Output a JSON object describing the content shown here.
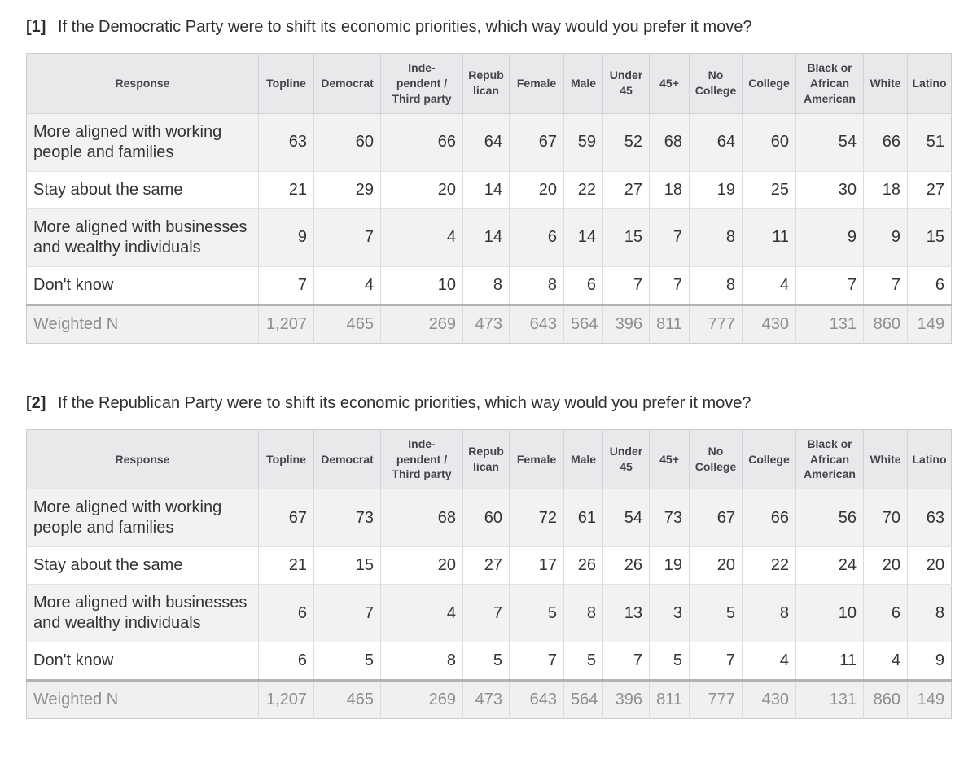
{
  "colors": {
    "header_bg": "#e9e9ec",
    "alt_row_bg": "#f2f2f2",
    "row_bg": "#ffffff",
    "footer_bg": "#f0f0f1",
    "inner_border": "#dcdcdc",
    "header_border": "#d4d4d8",
    "outer_border": "#cccccc",
    "footer_top_border": "#b3b3b3",
    "body_text": "#333333",
    "header_text": "#42444b",
    "footer_text": "#8e8e8e",
    "title_text": "#2e2e2e"
  },
  "columns": [
    {
      "key": "response",
      "label": "Response"
    },
    {
      "key": "topline",
      "label": "Topline"
    },
    {
      "key": "democrat",
      "label": "Democrat"
    },
    {
      "key": "independent-third-party",
      "label": "Inde-\npendent /\nThird party"
    },
    {
      "key": "republican",
      "label": "Repub\nlican"
    },
    {
      "key": "female",
      "label": "Female"
    },
    {
      "key": "male",
      "label": "Male"
    },
    {
      "key": "under-45",
      "label": "Under\n45"
    },
    {
      "key": "45-plus",
      "label": "45+"
    },
    {
      "key": "no-college",
      "label": "No\nCollege"
    },
    {
      "key": "college",
      "label": "College"
    },
    {
      "key": "black-african-american",
      "label": "Black or\nAfrican\nAmerican"
    },
    {
      "key": "white",
      "label": "White"
    },
    {
      "key": "latino",
      "label": "Latino"
    }
  ],
  "questions": [
    {
      "number": "[1]",
      "text": "If the Democratic Party were to shift its economic priorities, which way would you prefer it move?",
      "rows": [
        {
          "response": "More aligned with working people and families",
          "values": [
            "63",
            "60",
            "66",
            "64",
            "67",
            "59",
            "52",
            "68",
            "64",
            "60",
            "54",
            "66",
            "51"
          ]
        },
        {
          "response": "Stay about the same",
          "values": [
            "21",
            "29",
            "20",
            "14",
            "20",
            "22",
            "27",
            "18",
            "19",
            "25",
            "30",
            "18",
            "27"
          ]
        },
        {
          "response": "More aligned with businesses and wealthy individuals",
          "values": [
            "9",
            "7",
            "4",
            "14",
            "6",
            "14",
            "15",
            "7",
            "8",
            "11",
            "9",
            "9",
            "15"
          ]
        },
        {
          "response": "Don't know",
          "values": [
            "7",
            "4",
            "10",
            "8",
            "8",
            "6",
            "7",
            "7",
            "8",
            "4",
            "7",
            "7",
            "6"
          ]
        }
      ],
      "footer": {
        "label": "Weighted N",
        "values": [
          "1,207",
          "465",
          "269",
          "473",
          "643",
          "564",
          "396",
          "811",
          "777",
          "430",
          "131",
          "860",
          "149"
        ]
      }
    },
    {
      "number": "[2]",
      "text": "If the Republican Party were to shift its economic priorities, which way would you prefer it move?",
      "rows": [
        {
          "response": "More aligned with working people and families",
          "values": [
            "67",
            "73",
            "68",
            "60",
            "72",
            "61",
            "54",
            "73",
            "67",
            "66",
            "56",
            "70",
            "63"
          ]
        },
        {
          "response": "Stay about the same",
          "values": [
            "21",
            "15",
            "20",
            "27",
            "17",
            "26",
            "26",
            "19",
            "20",
            "22",
            "24",
            "20",
            "20"
          ]
        },
        {
          "response": "More aligned with businesses and wealthy individuals",
          "values": [
            "6",
            "7",
            "4",
            "7",
            "5",
            "8",
            "13",
            "3",
            "5",
            "8",
            "10",
            "6",
            "8"
          ]
        },
        {
          "response": "Don't know",
          "values": [
            "6",
            "5",
            "8",
            "5",
            "7",
            "5",
            "7",
            "5",
            "7",
            "4",
            "11",
            "4",
            "9"
          ]
        }
      ],
      "footer": {
        "label": "Weighted N",
        "values": [
          "1,207",
          "465",
          "269",
          "473",
          "643",
          "564",
          "396",
          "811",
          "777",
          "430",
          "131",
          "860",
          "149"
        ]
      }
    }
  ]
}
